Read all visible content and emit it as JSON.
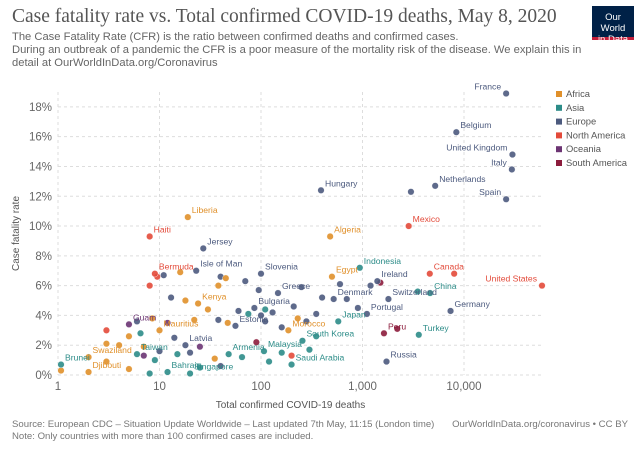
{
  "header": {
    "title": "Case fatality rate vs. Total confirmed COVID-19 deaths, May 8, 2020",
    "subtitle_lines": [
      "The Case Fatality Rate (CFR) is the ratio between confirmed deaths and confirmed cases.",
      " During an outbreak of a pandemic the CFR is a poor measure of the mortality risk of the disease. We explain this in",
      "detail at OurWorldInData.org/Coronavirus"
    ]
  },
  "logo": {
    "line1": "Our World",
    "line2": "in Data"
  },
  "footer": {
    "source": "Source: European CDC – Situation Update Worldwide – Last updated 7th May, 11:15 (London time)",
    "link": "OurWorldInData.org/coronavirus • CC BY",
    "note": "Note: Only countries with more than 100 confirmed cases are included."
  },
  "colors": {
    "Africa": "#e0902a",
    "Asia": "#2c8c88",
    "Europe": "#4c5a7e",
    "North America": "#e34a3a",
    "Oceania": "#6c3473",
    "South America": "#8c1c3c",
    "grid": "#dddddd",
    "axis_text": "#666666"
  },
  "chart_data": {
    "type": "scatter",
    "xlabel": "Total confirmed COVID-19 deaths",
    "ylabel": "Case fatality rate",
    "xscale": "log",
    "xlim": [
      1,
      60000
    ],
    "ylim": [
      0,
      19
    ],
    "xticks": [
      1,
      10,
      100,
      1000,
      10000
    ],
    "xtick_labels": [
      "1",
      "10",
      "100",
      "1,000",
      "10,000"
    ],
    "yticks": [
      0,
      2,
      4,
      6,
      8,
      10,
      12,
      14,
      16,
      18
    ],
    "ytick_labels": [
      "0%",
      "2%",
      "4%",
      "6%",
      "8%",
      "10%",
      "12%",
      "14%",
      "16%",
      "18%"
    ],
    "grid": true,
    "legend_position": "right",
    "legend": [
      "Africa",
      "Asia",
      "Europe",
      "North America",
      "Oceania",
      "South America"
    ],
    "points": [
      {
        "label": "France",
        "region": "Europe",
        "x": 26000,
        "y": 18.9
      },
      {
        "label": "Belgium",
        "region": "Europe",
        "x": 8400,
        "y": 16.3
      },
      {
        "label": "United Kingdom",
        "region": "Europe",
        "x": 30000,
        "y": 14.8
      },
      {
        "label": "Italy",
        "region": "Europe",
        "x": 29600,
        "y": 13.8
      },
      {
        "label": "Netherlands",
        "region": "Europe",
        "x": 5200,
        "y": 12.7
      },
      {
        "label": "Spain",
        "region": "Europe",
        "x": 26000,
        "y": 11.8
      },
      {
        "label": "Hungary",
        "region": "Europe",
        "x": 390,
        "y": 12.4
      },
      {
        "label": "Liberia",
        "region": "Africa",
        "x": 19,
        "y": 10.6
      },
      {
        "label": "Haiti",
        "region": "North America",
        "x": 8,
        "y": 9.3
      },
      {
        "label": "Mexico",
        "region": "North America",
        "x": 2850,
        "y": 10.0
      },
      {
        "label": "Algeria",
        "region": "Africa",
        "x": 480,
        "y": 9.3
      },
      {
        "label": "Jersey",
        "region": "Europe",
        "x": 27,
        "y": 8.5
      },
      {
        "label": "Indonesia",
        "region": "Asia",
        "x": 940,
        "y": 7.2
      },
      {
        "label": "Isle of Man",
        "region": "Europe",
        "x": 23,
        "y": 7.0
      },
      {
        "label": "Slovenia",
        "region": "Europe",
        "x": 100,
        "y": 6.8
      },
      {
        "label": "Egypt",
        "region": "Africa",
        "x": 500,
        "y": 6.6
      },
      {
        "label": "Ireland",
        "region": "Europe",
        "x": 1400,
        "y": 6.3
      },
      {
        "label": "Canada",
        "region": "North America",
        "x": 4600,
        "y": 6.8
      },
      {
        "label": "United States",
        "region": "North America",
        "x": 73000,
        "y": 6.0
      },
      {
        "label": "Bermuda",
        "region": "North America",
        "x": 9,
        "y": 6.8
      },
      {
        "label": "Greece",
        "region": "Europe",
        "x": 147,
        "y": 5.5
      },
      {
        "label": "Denmark",
        "region": "Europe",
        "x": 520,
        "y": 5.1
      },
      {
        "label": "Switzerland",
        "region": "Europe",
        "x": 1800,
        "y": 5.1
      },
      {
        "label": "China",
        "region": "Asia",
        "x": 4633,
        "y": 5.5
      },
      {
        "label": "Kenya",
        "region": "Africa",
        "x": 24,
        "y": 4.8
      },
      {
        "label": "Bulgaria",
        "region": "Europe",
        "x": 86,
        "y": 4.5
      },
      {
        "label": "Germany",
        "region": "Europe",
        "x": 7369,
        "y": 4.3
      },
      {
        "label": "Portugal",
        "region": "Europe",
        "x": 1105,
        "y": 4.1
      },
      {
        "label": "Guam",
        "region": "Oceania",
        "x": 5,
        "y": 3.4
      },
      {
        "label": "Mauritius",
        "region": "Africa",
        "x": 10,
        "y": 3.0
      },
      {
        "label": "Estonia",
        "region": "Europe",
        "x": 56,
        "y": 3.3
      },
      {
        "label": "Morocco",
        "region": "Africa",
        "x": 186,
        "y": 3.0
      },
      {
        "label": "Japan",
        "region": "Asia",
        "x": 577,
        "y": 3.6
      },
      {
        "label": "Peru",
        "region": "South America",
        "x": 1627,
        "y": 2.8
      },
      {
        "label": "Turkey",
        "region": "Asia",
        "x": 3584,
        "y": 2.7
      },
      {
        "label": "South Korea",
        "region": "Asia",
        "x": 256,
        "y": 2.3
      },
      {
        "label": "Latvia",
        "region": "Europe",
        "x": 18,
        "y": 2.0
      },
      {
        "label": "Malaysia",
        "region": "Asia",
        "x": 107,
        "y": 1.6
      },
      {
        "label": "Armenia",
        "region": "Asia",
        "x": 48,
        "y": 1.4
      },
      {
        "label": "Taiwan",
        "region": "Asia",
        "x": 6,
        "y": 1.4
      },
      {
        "label": "Swaziland",
        "region": "Africa",
        "x": 2,
        "y": 1.2
      },
      {
        "label": "Saudi Arabia",
        "region": "Asia",
        "x": 200,
        "y": 0.7
      },
      {
        "label": "Russia",
        "region": "Europe",
        "x": 1723,
        "y": 0.9
      },
      {
        "label": "Brunei",
        "region": "Asia",
        "x": 1,
        "y": 0.7
      },
      {
        "label": "Djibouti",
        "region": "Africa",
        "x": 2,
        "y": 0.2
      },
      {
        "label": "Bahrain",
        "region": "Asia",
        "x": 12,
        "y": 0.2
      },
      {
        "label": "Singapore",
        "region": "Asia",
        "x": 20,
        "y": 0.1
      },
      {
        "label": "",
        "region": "Africa",
        "x": 16,
        "y": 6.9
      },
      {
        "label": "",
        "region": "North America",
        "x": 9.5,
        "y": 6.6
      },
      {
        "label": "",
        "region": "North America",
        "x": 8,
        "y": 6.0
      },
      {
        "label": "",
        "region": "Europe",
        "x": 11,
        "y": 6.7
      },
      {
        "label": "",
        "region": "Europe",
        "x": 40,
        "y": 6.6
      },
      {
        "label": "",
        "region": "Africa",
        "x": 45,
        "y": 6.5
      },
      {
        "label": "",
        "region": "Europe",
        "x": 70,
        "y": 6.3
      },
      {
        "label": "",
        "region": "Africa",
        "x": 18,
        "y": 5.0
      },
      {
        "label": "",
        "region": "Europe",
        "x": 13,
        "y": 5.2
      },
      {
        "label": "",
        "region": "Africa",
        "x": 38,
        "y": 6.0
      },
      {
        "label": "",
        "region": "Europe",
        "x": 95,
        "y": 5.7
      },
      {
        "label": "",
        "region": "Africa",
        "x": 30,
        "y": 4.4
      },
      {
        "label": "",
        "region": "Europe",
        "x": 60,
        "y": 4.3
      },
      {
        "label": "",
        "region": "Asia",
        "x": 75,
        "y": 4.1
      },
      {
        "label": "",
        "region": "Europe",
        "x": 100,
        "y": 4.0
      },
      {
        "label": "",
        "region": "Europe",
        "x": 130,
        "y": 4.2
      },
      {
        "label": "",
        "region": "Africa",
        "x": 22,
        "y": 3.7
      },
      {
        "label": "",
        "region": "Europe",
        "x": 38,
        "y": 3.7
      },
      {
        "label": "",
        "region": "Africa",
        "x": 47,
        "y": 3.5
      },
      {
        "label": "",
        "region": "Europe",
        "x": 110,
        "y": 3.6
      },
      {
        "label": "",
        "region": "Europe",
        "x": 160,
        "y": 3.2
      },
      {
        "label": "",
        "region": "Africa",
        "x": 230,
        "y": 3.8
      },
      {
        "label": "",
        "region": "Europe",
        "x": 280,
        "y": 3.6
      },
      {
        "label": "",
        "region": "Asia",
        "x": 350,
        "y": 2.6
      },
      {
        "label": "",
        "region": "North America",
        "x": 3,
        "y": 3.0
      },
      {
        "label": "",
        "region": "Europe",
        "x": 6,
        "y": 3.6
      },
      {
        "label": "",
        "region": "Africa",
        "x": 8.5,
        "y": 3.8
      },
      {
        "label": "",
        "region": "Oceania",
        "x": 12,
        "y": 3.5
      },
      {
        "label": "",
        "region": "Africa",
        "x": 5,
        "y": 2.6
      },
      {
        "label": "",
        "region": "Asia",
        "x": 6.5,
        "y": 2.8
      },
      {
        "label": "",
        "region": "Europe",
        "x": 14,
        "y": 2.5
      },
      {
        "label": "",
        "region": "Oceania",
        "x": 25,
        "y": 1.9
      },
      {
        "label": "",
        "region": "Africa",
        "x": 7,
        "y": 1.9
      },
      {
        "label": "",
        "region": "Europe",
        "x": 10,
        "y": 1.6
      },
      {
        "label": "",
        "region": "Africa",
        "x": 3,
        "y": 2.1
      },
      {
        "label": "",
        "region": "Africa",
        "x": 4,
        "y": 2.0
      },
      {
        "label": "",
        "region": "Oceania",
        "x": 7,
        "y": 1.3
      },
      {
        "label": "",
        "region": "Asia",
        "x": 9,
        "y": 1.0
      },
      {
        "label": "",
        "region": "Africa",
        "x": 3,
        "y": 0.9
      },
      {
        "label": "",
        "region": "Asia",
        "x": 15,
        "y": 1.4
      },
      {
        "label": "",
        "region": "Europe",
        "x": 20,
        "y": 1.5
      },
      {
        "label": "",
        "region": "Africa",
        "x": 35,
        "y": 1.1
      },
      {
        "label": "",
        "region": "Asia",
        "x": 65,
        "y": 1.2
      },
      {
        "label": "",
        "region": "Asia",
        "x": 120,
        "y": 0.9
      },
      {
        "label": "",
        "region": "Asia",
        "x": 160,
        "y": 1.5
      },
      {
        "label": "",
        "region": "South America",
        "x": 90,
        "y": 2.2
      },
      {
        "label": "",
        "region": "Asia",
        "x": 300,
        "y": 1.7
      },
      {
        "label": "",
        "region": "Africa",
        "x": 1,
        "y": 0.3
      },
      {
        "label": "",
        "region": "Africa",
        "x": 5,
        "y": 0.4
      },
      {
        "label": "",
        "region": "Asia",
        "x": 25,
        "y": 0.5
      },
      {
        "label": "",
        "region": "Europe",
        "x": 40,
        "y": 0.6
      },
      {
        "label": "",
        "region": "North America",
        "x": 200,
        "y": 1.3
      },
      {
        "label": "",
        "region": "Asia",
        "x": 8,
        "y": 0.1
      },
      {
        "label": "",
        "region": "Europe",
        "x": 400,
        "y": 5.2
      },
      {
        "label": "",
        "region": "Europe",
        "x": 700,
        "y": 5.1
      },
      {
        "label": "",
        "region": "Europe",
        "x": 600,
        "y": 6.1
      },
      {
        "label": "",
        "region": "North America",
        "x": 8000,
        "y": 6.8
      },
      {
        "label": "",
        "region": "Europe",
        "x": 3000,
        "y": 12.3
      },
      {
        "label": "",
        "region": "Europe",
        "x": 250,
        "y": 5.9
      },
      {
        "label": "",
        "region": "Europe",
        "x": 1200,
        "y": 6.0
      },
      {
        "label": "",
        "region": "Europe",
        "x": 900,
        "y": 4.5
      },
      {
        "label": "",
        "region": "Europe",
        "x": 350,
        "y": 4.1
      },
      {
        "label": "",
        "region": "South America",
        "x": 1500,
        "y": 6.2
      },
      {
        "label": "",
        "region": "Asia",
        "x": 3500,
        "y": 5.6
      },
      {
        "label": "",
        "region": "South America",
        "x": 2200,
        "y": 3.1
      },
      {
        "label": "",
        "region": "Asia",
        "x": 110,
        "y": 4.4
      },
      {
        "label": "",
        "region": "Europe",
        "x": 210,
        "y": 4.6
      }
    ]
  }
}
